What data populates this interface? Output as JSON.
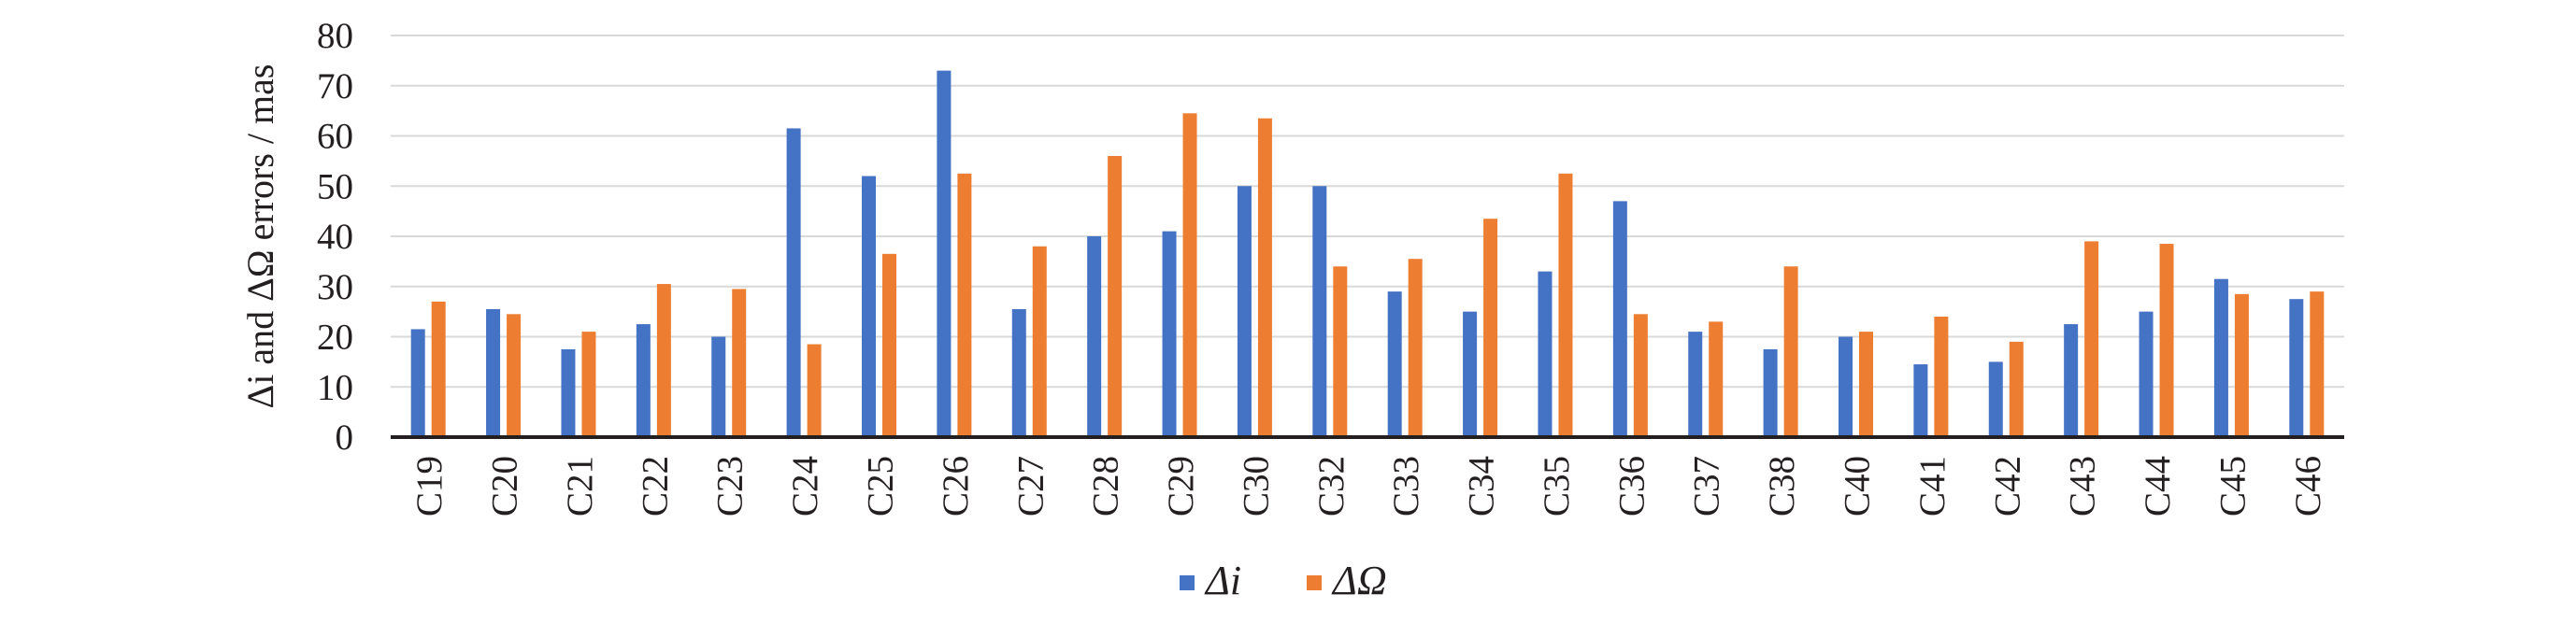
{
  "chart_data": {
    "type": "bar",
    "ylabel": "Δi and ΔΩ errors / mas",
    "ylim": [
      0,
      80
    ],
    "yticks": [
      0,
      10,
      20,
      30,
      40,
      50,
      60,
      70,
      80
    ],
    "grid": true,
    "legend_position": "bottom",
    "categories": [
      "C19",
      "C20",
      "C21",
      "C22",
      "C23",
      "C24",
      "C25",
      "C26",
      "C27",
      "C28",
      "C29",
      "C30",
      "C32",
      "C33",
      "C34",
      "C35",
      "C36",
      "C37",
      "C38",
      "C40",
      "C41",
      "C42",
      "C43",
      "C44",
      "C45",
      "C46"
    ],
    "series": [
      {
        "name": "Δi",
        "color": "#4472c4",
        "values": [
          21.5,
          25.5,
          17.5,
          22.5,
          20,
          61.5,
          52,
          73,
          25.5,
          40,
          41,
          50,
          50,
          29,
          25,
          33,
          47,
          21,
          17.5,
          20,
          14.5,
          15,
          22.5,
          25,
          31.5,
          27.5
        ]
      },
      {
        "name": "ΔΩ",
        "color": "#ed7d31",
        "values": [
          27,
          24.5,
          21,
          30.5,
          29.5,
          18.5,
          36.5,
          52.5,
          38,
          56,
          64.5,
          63.5,
          34,
          35.5,
          43.5,
          52.5,
          24.5,
          23,
          34,
          21,
          24,
          19,
          39,
          38.5,
          28.5,
          29
        ]
      }
    ]
  }
}
